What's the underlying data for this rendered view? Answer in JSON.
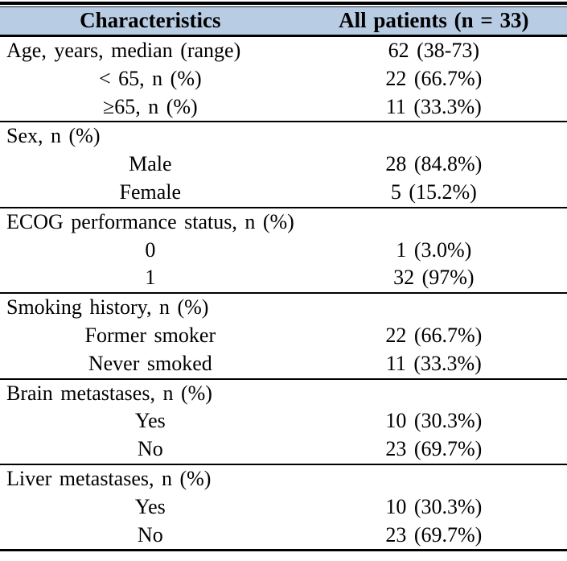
{
  "colors": {
    "header_background": "#b8cce4",
    "border": "#000000",
    "text": "#000000"
  },
  "table": {
    "header": {
      "col1": "Characteristics",
      "col2": "All patients (n = 33)"
    },
    "sections": [
      {
        "rows": [
          {
            "label": "Age, years, median (range)",
            "value": "62 (38-73)"
          },
          {
            "label": "< 65, n (%)",
            "value": "22 (66.7%)"
          },
          {
            "label": "≥65, n (%)",
            "value": "11 (33.3%)"
          }
        ]
      },
      {
        "rows": [
          {
            "label": "Sex, n (%)",
            "value": ""
          },
          {
            "label": "Male",
            "value": "28 (84.8%)"
          },
          {
            "label": "Female",
            "value": "5 (15.2%)"
          }
        ]
      },
      {
        "rows": [
          {
            "label": "ECOG performance status, n (%)",
            "value": ""
          },
          {
            "label": "0",
            "value": "1 (3.0%)"
          },
          {
            "label": "1",
            "value": "32 (97%)"
          }
        ]
      },
      {
        "rows": [
          {
            "label": "Smoking history, n (%)",
            "value": ""
          },
          {
            "label": "Former smoker",
            "value": "22 (66.7%)"
          },
          {
            "label": "Never smoked",
            "value": "11 (33.3%)"
          }
        ]
      },
      {
        "rows": [
          {
            "label": "Brain metastases, n (%)",
            "value": ""
          },
          {
            "label": "Yes",
            "value": "10 (30.3%)"
          },
          {
            "label": "No",
            "value": "23 (69.7%)"
          }
        ]
      },
      {
        "rows": [
          {
            "label": "Liver metastases, n (%)",
            "value": ""
          },
          {
            "label": "Yes",
            "value": "10 (30.3%)"
          },
          {
            "label": "No",
            "value": "23 (69.7%)"
          }
        ]
      }
    ]
  }
}
